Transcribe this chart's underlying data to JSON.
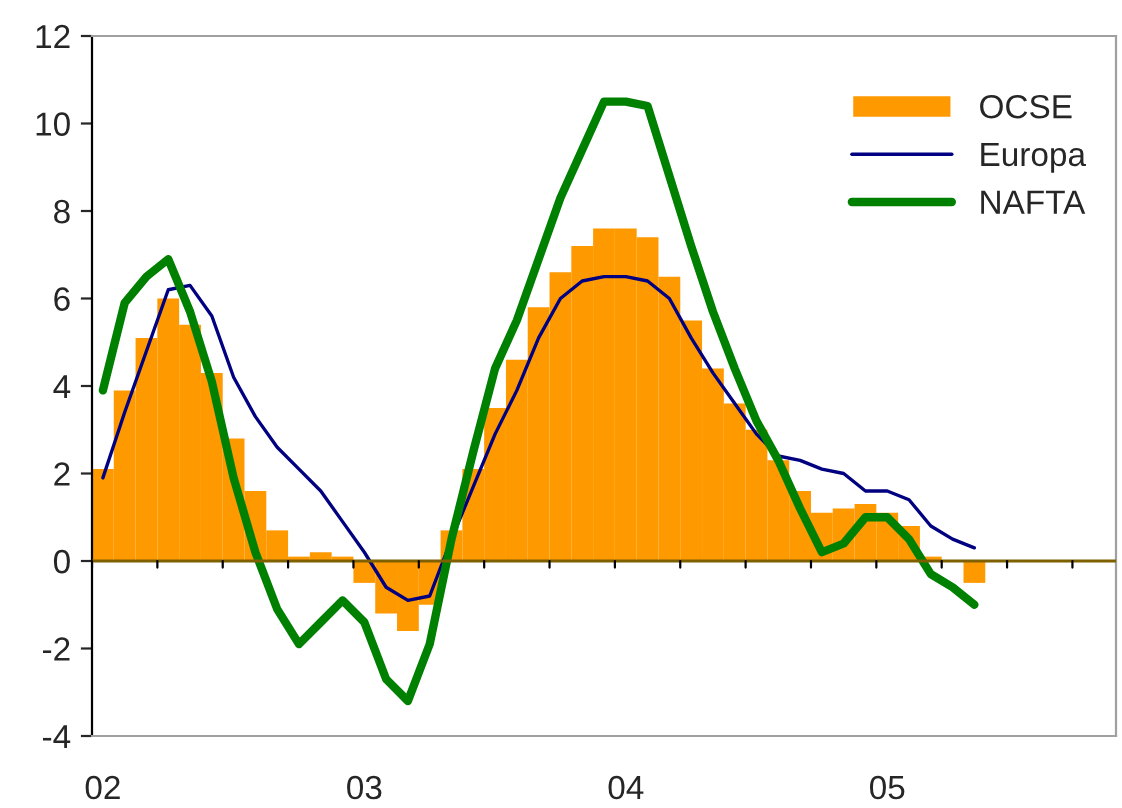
{
  "chart_data": {
    "type": "bar",
    "categories": [
      "02",
      null,
      null,
      null,
      null,
      null,
      null,
      null,
      null,
      null,
      null,
      null,
      "03",
      null,
      null,
      null,
      null,
      null,
      null,
      null,
      null,
      null,
      null,
      null,
      "04",
      null,
      null,
      null,
      null,
      null,
      null,
      null,
      null,
      null,
      null,
      null,
      "05",
      null,
      null,
      null,
      null,
      null,
      null,
      null,
      null,
      null,
      null,
      null
    ],
    "series": [
      {
        "name": "OCSE",
        "color": "#ff9900",
        "values": [
          2.1,
          3.9,
          5.1,
          6.0,
          5.4,
          4.3,
          2.8,
          1.6,
          0.7,
          0.1,
          0.2,
          0.1,
          -0.5,
          -1.2,
          -1.6,
          -1.0,
          0.7,
          2.1,
          3.5,
          4.6,
          5.8,
          6.6,
          7.2,
          7.6,
          7.6,
          7.4,
          6.5,
          5.5,
          4.4,
          3.6,
          3.0,
          2.3,
          1.6,
          1.1,
          1.2,
          1.3,
          1.1,
          0.8,
          0.1,
          0.0,
          -0.5,
          null,
          null,
          null,
          null,
          null,
          null,
          null
        ]
      },
      {
        "name": "Europa",
        "type": "line",
        "color": "#000080",
        "values": [
          1.9,
          3.4,
          4.8,
          6.2,
          6.3,
          5.6,
          4.2,
          3.3,
          2.6,
          2.1,
          1.6,
          0.9,
          0.2,
          -0.6,
          -0.9,
          -0.8,
          0.5,
          1.7,
          2.9,
          3.9,
          5.1,
          6.0,
          6.4,
          6.5,
          6.5,
          6.4,
          6.0,
          5.1,
          4.3,
          3.6,
          2.9,
          2.4,
          2.3,
          2.1,
          2.0,
          1.6,
          1.6,
          1.4,
          0.8,
          0.5,
          0.3,
          null,
          null,
          null,
          null,
          null,
          null,
          null
        ]
      },
      {
        "name": "NAFTA",
        "type": "line",
        "color": "#008000",
        "values": [
          3.9,
          5.9,
          6.5,
          6.9,
          5.7,
          4.1,
          1.9,
          0.2,
          -1.1,
          -1.9,
          -1.4,
          -0.9,
          -1.4,
          -2.7,
          -3.2,
          -1.9,
          0.5,
          2.5,
          4.4,
          5.5,
          6.9,
          8.3,
          9.4,
          10.5,
          10.5,
          10.4,
          8.8,
          7.2,
          5.7,
          4.4,
          3.2,
          2.3,
          1.2,
          0.2,
          0.4,
          1.0,
          1.0,
          0.5,
          -0.3,
          -0.6,
          -1.0,
          null,
          null,
          null,
          null,
          null,
          null,
          null
        ]
      }
    ],
    "ylim": [
      -4,
      12
    ],
    "yticks": [
      -4,
      -2,
      0,
      2,
      4,
      6,
      8,
      10,
      12
    ],
    "ref_lines": [
      {
        "axis": "y",
        "value": 0,
        "color": "#7f6000"
      }
    ],
    "grid": false,
    "legend": "top right"
  }
}
